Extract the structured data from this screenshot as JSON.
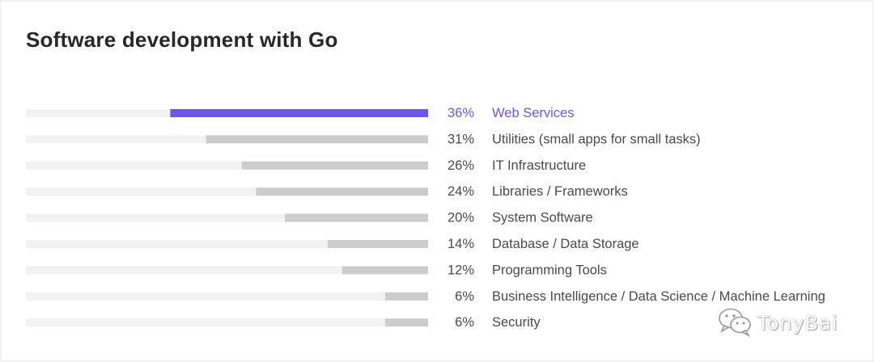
{
  "chart_data": {
    "type": "bar",
    "orientation": "horizontal",
    "direction": "right-to-left",
    "title": "Software development with Go",
    "xlabel": "",
    "ylabel": "",
    "xlim": [
      0,
      100
    ],
    "grid": false,
    "legend": "none",
    "categories": [
      "Web Services",
      "Utilities (small apps for small tasks)",
      "IT Infrastructure",
      "Libraries / Frameworks",
      "System Software",
      "Database / Data Storage",
      "Programming Tools",
      "Business Intelligence / Data Science /  Machine Learning",
      "Security"
    ],
    "values": [
      36,
      31,
      26,
      24,
      20,
      14,
      12,
      6,
      6
    ],
    "value_labels": [
      "36%",
      "31%",
      "26%",
      "24%",
      "20%",
      "14%",
      "12%",
      "6%",
      "6%"
    ],
    "highlight_index": 0
  },
  "colors": {
    "highlight": "#6b57e8",
    "bar": "#cccccc",
    "track": "#f2f2f2",
    "text": "#4a4a4a",
    "title": "#27282c"
  },
  "watermark": {
    "icon": "wechat-icon",
    "text": "TonyBai"
  }
}
